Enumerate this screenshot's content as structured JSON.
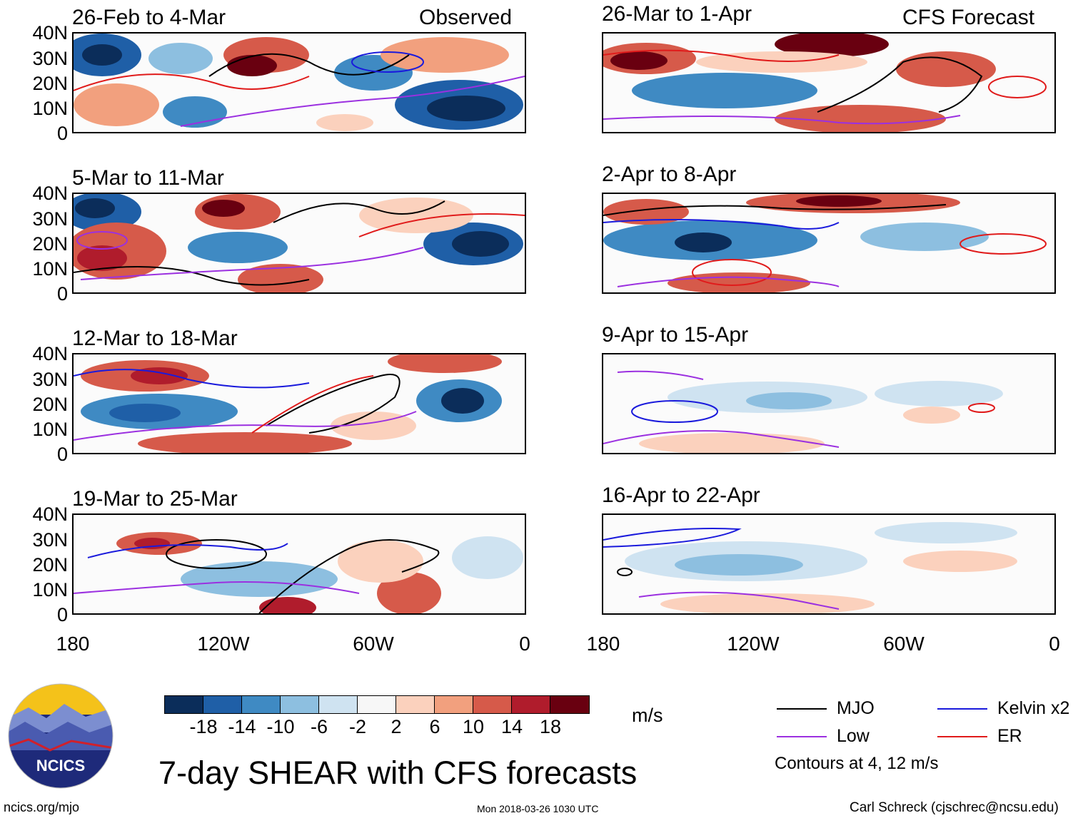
{
  "columns": {
    "observed_label": "Observed",
    "forecast_label": "CFS Forecast"
  },
  "panels": [
    {
      "title": "26-Feb to 4-Mar",
      "kind": "observed"
    },
    {
      "title": "5-Mar to 11-Mar",
      "kind": "observed"
    },
    {
      "title": "12-Mar to 18-Mar",
      "kind": "observed"
    },
    {
      "title": "19-Mar to 25-Mar",
      "kind": "observed"
    },
    {
      "title": "26-Mar to 1-Apr",
      "kind": "forecast"
    },
    {
      "title": "2-Apr to 8-Apr",
      "kind": "forecast"
    },
    {
      "title": "9-Apr to 15-Apr",
      "kind": "forecast"
    },
    {
      "title": "16-Apr to 22-Apr",
      "kind": "forecast"
    }
  ],
  "axes": {
    "lat_labels": [
      "40N",
      "30N",
      "20N",
      "10N",
      "0"
    ],
    "lon_labels": [
      "180",
      "120W",
      "60W",
      "0"
    ]
  },
  "colorbar": {
    "units": "m/s",
    "tick_labels": [
      "-18",
      "-14",
      "-10",
      "-6",
      "-2",
      "2",
      "6",
      "10",
      "14",
      "18"
    ],
    "colors": [
      "#0b2d5a",
      "#1f5fa7",
      "#3f8ac3",
      "#8dbfe0",
      "#cfe3f1",
      "#f7f7f7",
      "#fbd1bd",
      "#f2a07e",
      "#d65a4a",
      "#b01c2c",
      "#690010"
    ]
  },
  "title": "7-day SHEAR with CFS forecasts",
  "legend": {
    "items": [
      {
        "label": "MJO",
        "color": "#000000"
      },
      {
        "label": "Kelvin x2",
        "color": "#1a1adc"
      },
      {
        "label": "Low",
        "color": "#9b30e0"
      },
      {
        "label": "ER",
        "color": "#e01b1b"
      }
    ],
    "contour_note": "Contours at 4, 12 m/s"
  },
  "footer": {
    "website": "ncics.org/mjo",
    "timestamp": "Mon 2018-03-26 1030 UTC",
    "credit": "Carl Schreck (cjschrec@ncsu.edu)"
  },
  "logo": {
    "text": "NCICS"
  }
}
